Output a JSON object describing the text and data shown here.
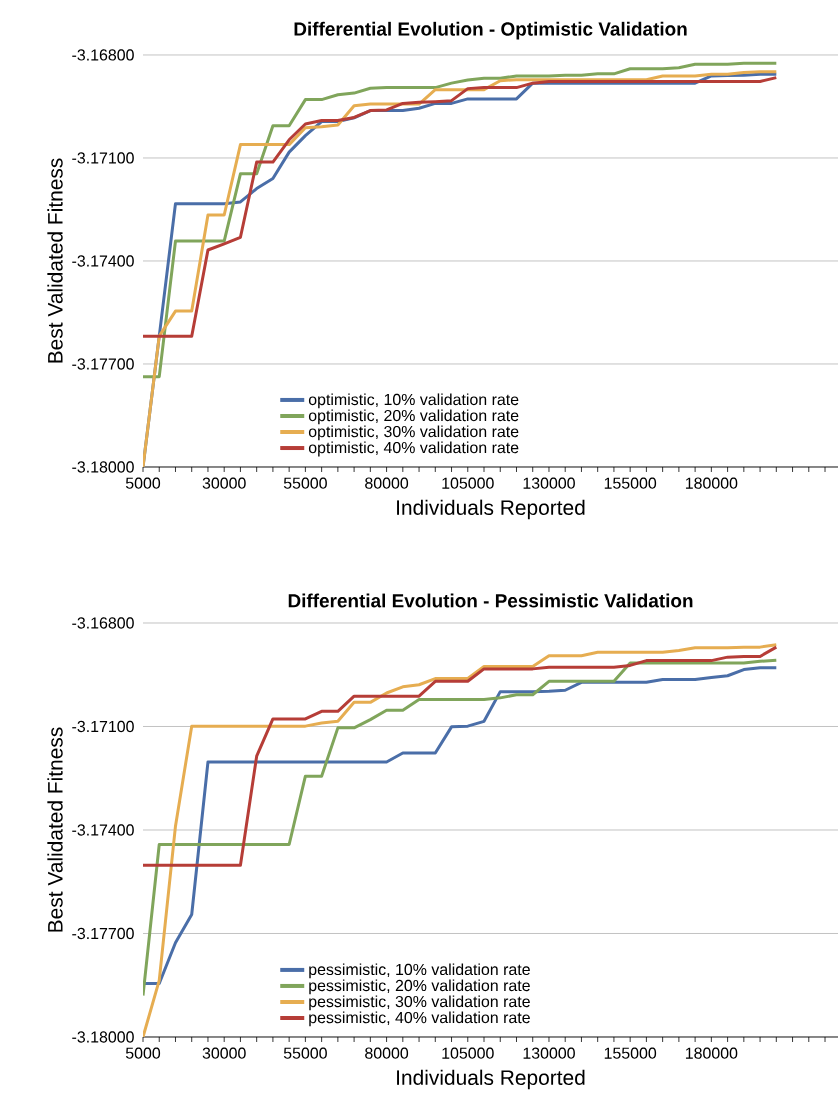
{
  "chart_data": [
    {
      "type": "line",
      "title": "Differential Evolution - Optimistic Validation",
      "xlabel": "Individuals Reported",
      "ylabel": "Best Validated Fitness",
      "x": [
        5000,
        10000,
        15000,
        20000,
        25000,
        30000,
        35000,
        40000,
        45000,
        50000,
        55000,
        60000,
        65000,
        70000,
        75000,
        80000,
        85000,
        90000,
        95000,
        100000,
        105000,
        110000,
        115000,
        120000,
        125000,
        130000,
        135000,
        140000,
        145000,
        150000,
        155000,
        160000,
        165000,
        170000,
        175000,
        180000,
        185000,
        190000,
        195000,
        200000
      ],
      "xlim": [
        5000,
        219000
      ],
      "xticks": [
        5000,
        {
          "value": 10000,
          "label": null
        },
        {
          "value": 15000,
          "label": null
        },
        {
          "value": 20000,
          "label": null
        },
        {
          "value": 25000,
          "label": null
        },
        30000,
        {
          "value": 35000,
          "label": null
        },
        {
          "value": 40000,
          "label": null
        },
        {
          "value": 45000,
          "label": null
        },
        {
          "value": 50000,
          "label": null
        },
        55000,
        {
          "value": 60000,
          "label": null
        },
        {
          "value": 65000,
          "label": null
        },
        {
          "value": 70000,
          "label": null
        },
        {
          "value": 75000,
          "label": null
        },
        80000,
        {
          "value": 85000,
          "label": null
        },
        {
          "value": 90000,
          "label": null
        },
        {
          "value": 95000,
          "label": null
        },
        {
          "value": 100000,
          "label": null
        },
        105000,
        {
          "value": 110000,
          "label": null
        },
        {
          "value": 115000,
          "label": null
        },
        {
          "value": 120000,
          "label": null
        },
        {
          "value": 125000,
          "label": null
        },
        130000,
        {
          "value": 135000,
          "label": null
        },
        {
          "value": 140000,
          "label": null
        },
        {
          "value": 145000,
          "label": null
        },
        {
          "value": 150000,
          "label": null
        },
        155000,
        {
          "value": 160000,
          "label": null
        },
        {
          "value": 165000,
          "label": null
        },
        {
          "value": 170000,
          "label": null
        },
        {
          "value": 175000,
          "label": null
        },
        180000,
        {
          "value": 185000,
          "label": null
        },
        {
          "value": 190000,
          "label": null
        },
        {
          "value": 195000,
          "label": null
        },
        {
          "value": 200000,
          "label": null
        },
        {
          "value": 205000,
          "label": null
        },
        {
          "value": 210000,
          "label": null
        },
        {
          "value": 215000,
          "label": null
        }
      ],
      "ylim": [
        -3.18,
        -3.168
      ],
      "yticks": [
        {
          "value": -3.18,
          "label": "-3.18000"
        },
        {
          "value": -3.177,
          "label": "-3.17700"
        },
        {
          "value": -3.174,
          "label": "-3.17400"
        },
        {
          "value": -3.171,
          "label": "-3.17100"
        },
        {
          "value": -3.168,
          "label": "-3.16800"
        }
      ],
      "grid": "y",
      "legend": "bottom",
      "series": [
        {
          "name": "optimistic, 10% validation rate",
          "color": "#4a6ea8",
          "values": [
            -3.18,
            -3.17619,
            -3.17233,
            -3.17233,
            -3.17233,
            -3.17233,
            -3.17228,
            -3.17189,
            -3.1716,
            -3.17083,
            -3.17035,
            -3.16994,
            -3.16994,
            -3.16983,
            -3.16962,
            -3.16962,
            -3.16962,
            -3.16955,
            -3.16941,
            -3.16941,
            -3.16928,
            -3.16928,
            -3.16928,
            -3.16928,
            -3.16882,
            -3.16882,
            -3.16882,
            -3.16882,
            -3.16882,
            -3.16882,
            -3.16882,
            -3.16882,
            -3.16882,
            -3.16882,
            -3.16882,
            -3.16861,
            -3.1686,
            -3.16859,
            -3.16856,
            -3.16856
          ]
        },
        {
          "name": "optimistic, 20% validation rate",
          "color": "#80a55b",
          "values": [
            -3.17737,
            -3.17737,
            -3.17342,
            -3.17342,
            -3.17342,
            -3.17342,
            -3.17146,
            -3.17146,
            -3.17006,
            -3.17006,
            -3.1693,
            -3.1693,
            -3.16916,
            -3.16911,
            -3.16897,
            -3.16895,
            -3.16895,
            -3.16895,
            -3.16895,
            -3.16882,
            -3.16873,
            -3.16868,
            -3.16868,
            -3.16861,
            -3.16861,
            -3.16861,
            -3.16859,
            -3.16859,
            -3.16855,
            -3.16855,
            -3.1684,
            -3.1684,
            -3.1684,
            -3.16837,
            -3.16827,
            -3.16827,
            -3.16827,
            -3.16824,
            -3.16824,
            -3.16824
          ]
        },
        {
          "name": "optimistic, 30% validation rate",
          "color": "#e6ad51",
          "values": [
            -3.18,
            -3.17619,
            -3.17546,
            -3.17546,
            -3.17266,
            -3.17266,
            -3.17061,
            -3.17061,
            -3.17061,
            -3.17061,
            -3.17012,
            -3.17009,
            -3.17004,
            -3.16948,
            -3.16943,
            -3.16943,
            -3.16943,
            -3.16943,
            -3.16901,
            -3.16901,
            -3.16901,
            -3.16901,
            -3.16875,
            -3.16872,
            -3.16872,
            -3.16872,
            -3.16872,
            -3.16872,
            -3.16872,
            -3.16872,
            -3.16872,
            -3.16872,
            -3.16861,
            -3.16861,
            -3.16861,
            -3.16856,
            -3.16856,
            -3.16851,
            -3.16849,
            -3.16849
          ]
        },
        {
          "name": "optimistic, 40% validation rate",
          "color": "#b63d37",
          "values": [
            -3.17619,
            -3.17619,
            -3.17619,
            -3.17619,
            -3.17368,
            -3.1735,
            -3.17331,
            -3.17112,
            -3.17112,
            -3.17047,
            -3.17001,
            -3.16991,
            -3.16991,
            -3.16982,
            -3.16962,
            -3.1696,
            -3.16941,
            -3.16938,
            -3.16936,
            -3.16933,
            -3.16898,
            -3.16895,
            -3.16895,
            -3.16895,
            -3.16882,
            -3.16877,
            -3.16877,
            -3.16877,
            -3.16877,
            -3.16877,
            -3.16877,
            -3.16877,
            -3.16877,
            -3.16877,
            -3.16877,
            -3.16877,
            -3.16877,
            -3.16877,
            -3.16877,
            -3.16866
          ]
        }
      ]
    },
    {
      "type": "line",
      "title": "Differential Evolution - Pessimistic Validation",
      "xlabel": "Individuals Reported",
      "ylabel": "Best Validated Fitness",
      "x": [
        5000,
        10000,
        15000,
        20000,
        25000,
        30000,
        35000,
        40000,
        45000,
        50000,
        55000,
        60000,
        65000,
        70000,
        75000,
        80000,
        85000,
        90000,
        95000,
        100000,
        105000,
        110000,
        115000,
        120000,
        125000,
        130000,
        135000,
        140000,
        145000,
        150000,
        155000,
        160000,
        165000,
        170000,
        175000,
        180000,
        185000,
        190000,
        195000,
        200000
      ],
      "xlim": [
        5000,
        219000
      ],
      "xticks": [
        5000,
        {
          "value": 10000,
          "label": null
        },
        {
          "value": 15000,
          "label": null
        },
        {
          "value": 20000,
          "label": null
        },
        {
          "value": 25000,
          "label": null
        },
        30000,
        {
          "value": 35000,
          "label": null
        },
        {
          "value": 40000,
          "label": null
        },
        {
          "value": 45000,
          "label": null
        },
        {
          "value": 50000,
          "label": null
        },
        55000,
        {
          "value": 60000,
          "label": null
        },
        {
          "value": 65000,
          "label": null
        },
        {
          "value": 70000,
          "label": null
        },
        {
          "value": 75000,
          "label": null
        },
        80000,
        {
          "value": 85000,
          "label": null
        },
        {
          "value": 90000,
          "label": null
        },
        {
          "value": 95000,
          "label": null
        },
        {
          "value": 100000,
          "label": null
        },
        105000,
        {
          "value": 110000,
          "label": null
        },
        {
          "value": 115000,
          "label": null
        },
        {
          "value": 120000,
          "label": null
        },
        {
          "value": 125000,
          "label": null
        },
        130000,
        {
          "value": 135000,
          "label": null
        },
        {
          "value": 140000,
          "label": null
        },
        {
          "value": 145000,
          "label": null
        },
        {
          "value": 150000,
          "label": null
        },
        155000,
        {
          "value": 160000,
          "label": null
        },
        {
          "value": 165000,
          "label": null
        },
        {
          "value": 170000,
          "label": null
        },
        {
          "value": 175000,
          "label": null
        },
        180000,
        {
          "value": 185000,
          "label": null
        },
        {
          "value": 190000,
          "label": null
        },
        {
          "value": 195000,
          "label": null
        },
        {
          "value": 200000,
          "label": null
        },
        {
          "value": 205000,
          "label": null
        },
        {
          "value": 210000,
          "label": null
        },
        {
          "value": 215000,
          "label": null
        }
      ],
      "ylim": [
        -3.18,
        -3.168
      ],
      "yticks": [
        {
          "value": -3.18,
          "label": "-3.18000"
        },
        {
          "value": -3.177,
          "label": "-3.17700"
        },
        {
          "value": -3.174,
          "label": "-3.17400"
        },
        {
          "value": -3.171,
          "label": "-3.17100"
        },
        {
          "value": -3.168,
          "label": "-3.16800"
        }
      ],
      "grid": "y",
      "legend": "bottom",
      "series": [
        {
          "name": "pessimistic, 10% validation rate",
          "color": "#4a6ea8",
          "values": [
            -3.17845,
            -3.17845,
            -3.17727,
            -3.17645,
            -3.17203,
            -3.17203,
            -3.17203,
            -3.17203,
            -3.17203,
            -3.17203,
            -3.17203,
            -3.17203,
            -3.17203,
            -3.17203,
            -3.17203,
            -3.17203,
            -3.17177,
            -3.17177,
            -3.17177,
            -3.17101,
            -3.17099,
            -3.17085,
            -3.16999,
            -3.16999,
            -3.16999,
            -3.16998,
            -3.16995,
            -3.16972,
            -3.16972,
            -3.16972,
            -3.16972,
            -3.16972,
            -3.16964,
            -3.16964,
            -3.16964,
            -3.16958,
            -3.16953,
            -3.16935,
            -3.1693,
            -3.1693
          ]
        },
        {
          "name": "pessimistic, 20% validation rate",
          "color": "#80a55b",
          "values": [
            -3.1788,
            -3.17442,
            -3.17442,
            -3.17442,
            -3.17442,
            -3.17442,
            -3.17442,
            -3.17442,
            -3.17442,
            -3.17442,
            -3.17244,
            -3.17244,
            -3.17104,
            -3.17104,
            -3.1708,
            -3.17053,
            -3.17053,
            -3.17022,
            -3.17022,
            -3.17022,
            -3.17022,
            -3.17022,
            -3.17017,
            -3.17008,
            -3.17008,
            -3.16969,
            -3.16969,
            -3.16969,
            -3.16969,
            -3.16969,
            -3.16916,
            -3.16916,
            -3.16916,
            -3.16916,
            -3.16916,
            -3.16916,
            -3.16916,
            -3.16916,
            -3.16911,
            -3.16908
          ]
        },
        {
          "name": "pessimistic, 30% validation rate",
          "color": "#e6ad51",
          "values": [
            -3.18,
            -3.17836,
            -3.17389,
            -3.17099,
            -3.17099,
            -3.17099,
            -3.17099,
            -3.17099,
            -3.17099,
            -3.17099,
            -3.17099,
            -3.1709,
            -3.17085,
            -3.1703,
            -3.1703,
            -3.17003,
            -3.16985,
            -3.16979,
            -3.16961,
            -3.16961,
            -3.16961,
            -3.16926,
            -3.16926,
            -3.16926,
            -3.16926,
            -3.16895,
            -3.16895,
            -3.16895,
            -3.16885,
            -3.16885,
            -3.16885,
            -3.16885,
            -3.16885,
            -3.1688,
            -3.16872,
            -3.16872,
            -3.16872,
            -3.1687,
            -3.1687,
            -3.16863
          ]
        },
        {
          "name": "pessimistic, 40% validation rate",
          "color": "#b63d37",
          "values": [
            -3.17502,
            -3.17502,
            -3.17502,
            -3.17502,
            -3.17502,
            -3.17502,
            -3.17502,
            -3.17186,
            -3.17078,
            -3.17078,
            -3.17078,
            -3.17056,
            -3.17056,
            -3.17012,
            -3.17012,
            -3.17012,
            -3.17012,
            -3.17012,
            -3.16969,
            -3.16969,
            -3.16969,
            -3.16933,
            -3.16933,
            -3.16933,
            -3.16933,
            -3.16928,
            -3.16928,
            -3.16928,
            -3.16928,
            -3.16928,
            -3.16923,
            -3.16909,
            -3.16909,
            -3.16909,
            -3.16909,
            -3.16909,
            -3.16899,
            -3.16897,
            -3.16897,
            -3.1687
          ]
        }
      ]
    }
  ]
}
